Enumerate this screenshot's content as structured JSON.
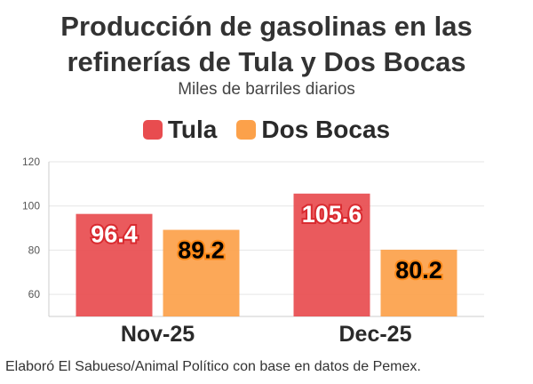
{
  "chart_data": {
    "type": "bar",
    "title": "Producción de gasolinas en las refinerías de Tula y Dos Bocas",
    "subtitle": "Miles de barriles diarios",
    "categories": [
      "Nov-25",
      "Dec-25"
    ],
    "series": [
      {
        "name": "Tula",
        "color": "#e84c4f",
        "values": [
          96.4,
          105.6
        ]
      },
      {
        "name": "Dos Bocas",
        "color": "#fca14a",
        "values": [
          89.2,
          80.2
        ]
      }
    ],
    "y_ticks": [
      60,
      80,
      100,
      120
    ],
    "ylim": [
      50,
      120
    ],
    "grid": true,
    "legend_position": "top-center"
  },
  "source": "Elaboró El Sabueso/Animal Político con base en datos de Pemex."
}
